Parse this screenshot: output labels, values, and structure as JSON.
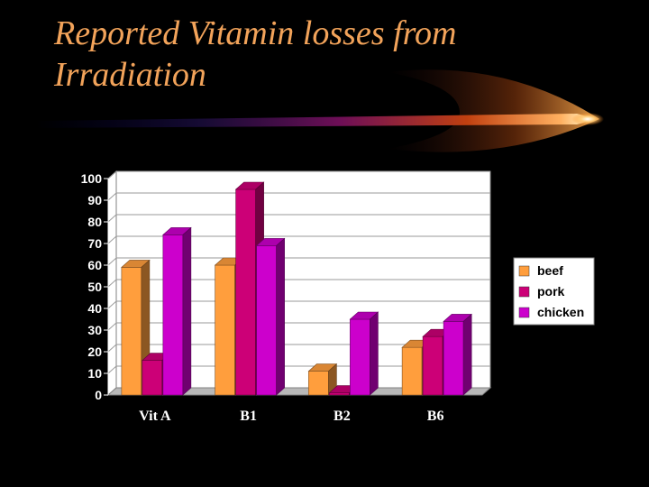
{
  "slide": {
    "title_line1": "Reported Vitamin losses from",
    "title_line2": "Irradiation",
    "title_color": "#f2a35a"
  },
  "chart_data": {
    "type": "bar",
    "style": "3d-clustered",
    "categories": [
      "Vit A",
      "B1",
      "B2",
      "B6"
    ],
    "series": [
      {
        "name": "beef",
        "values": [
          59,
          60,
          11,
          22
        ],
        "color": "#ff9e3d"
      },
      {
        "name": "pork",
        "values": [
          16,
          95,
          1,
          27
        ],
        "color": "#cc0077"
      },
      {
        "name": "chicken",
        "values": [
          74,
          69,
          35,
          34
        ],
        "color": "#cc00cc"
      }
    ],
    "yticks": [
      "0",
      "10",
      "20",
      "30",
      "40",
      "50",
      "60",
      "70",
      "80",
      "90",
      "100"
    ],
    "ylim": [
      0,
      100
    ],
    "grid": true,
    "legend_position": "right"
  }
}
